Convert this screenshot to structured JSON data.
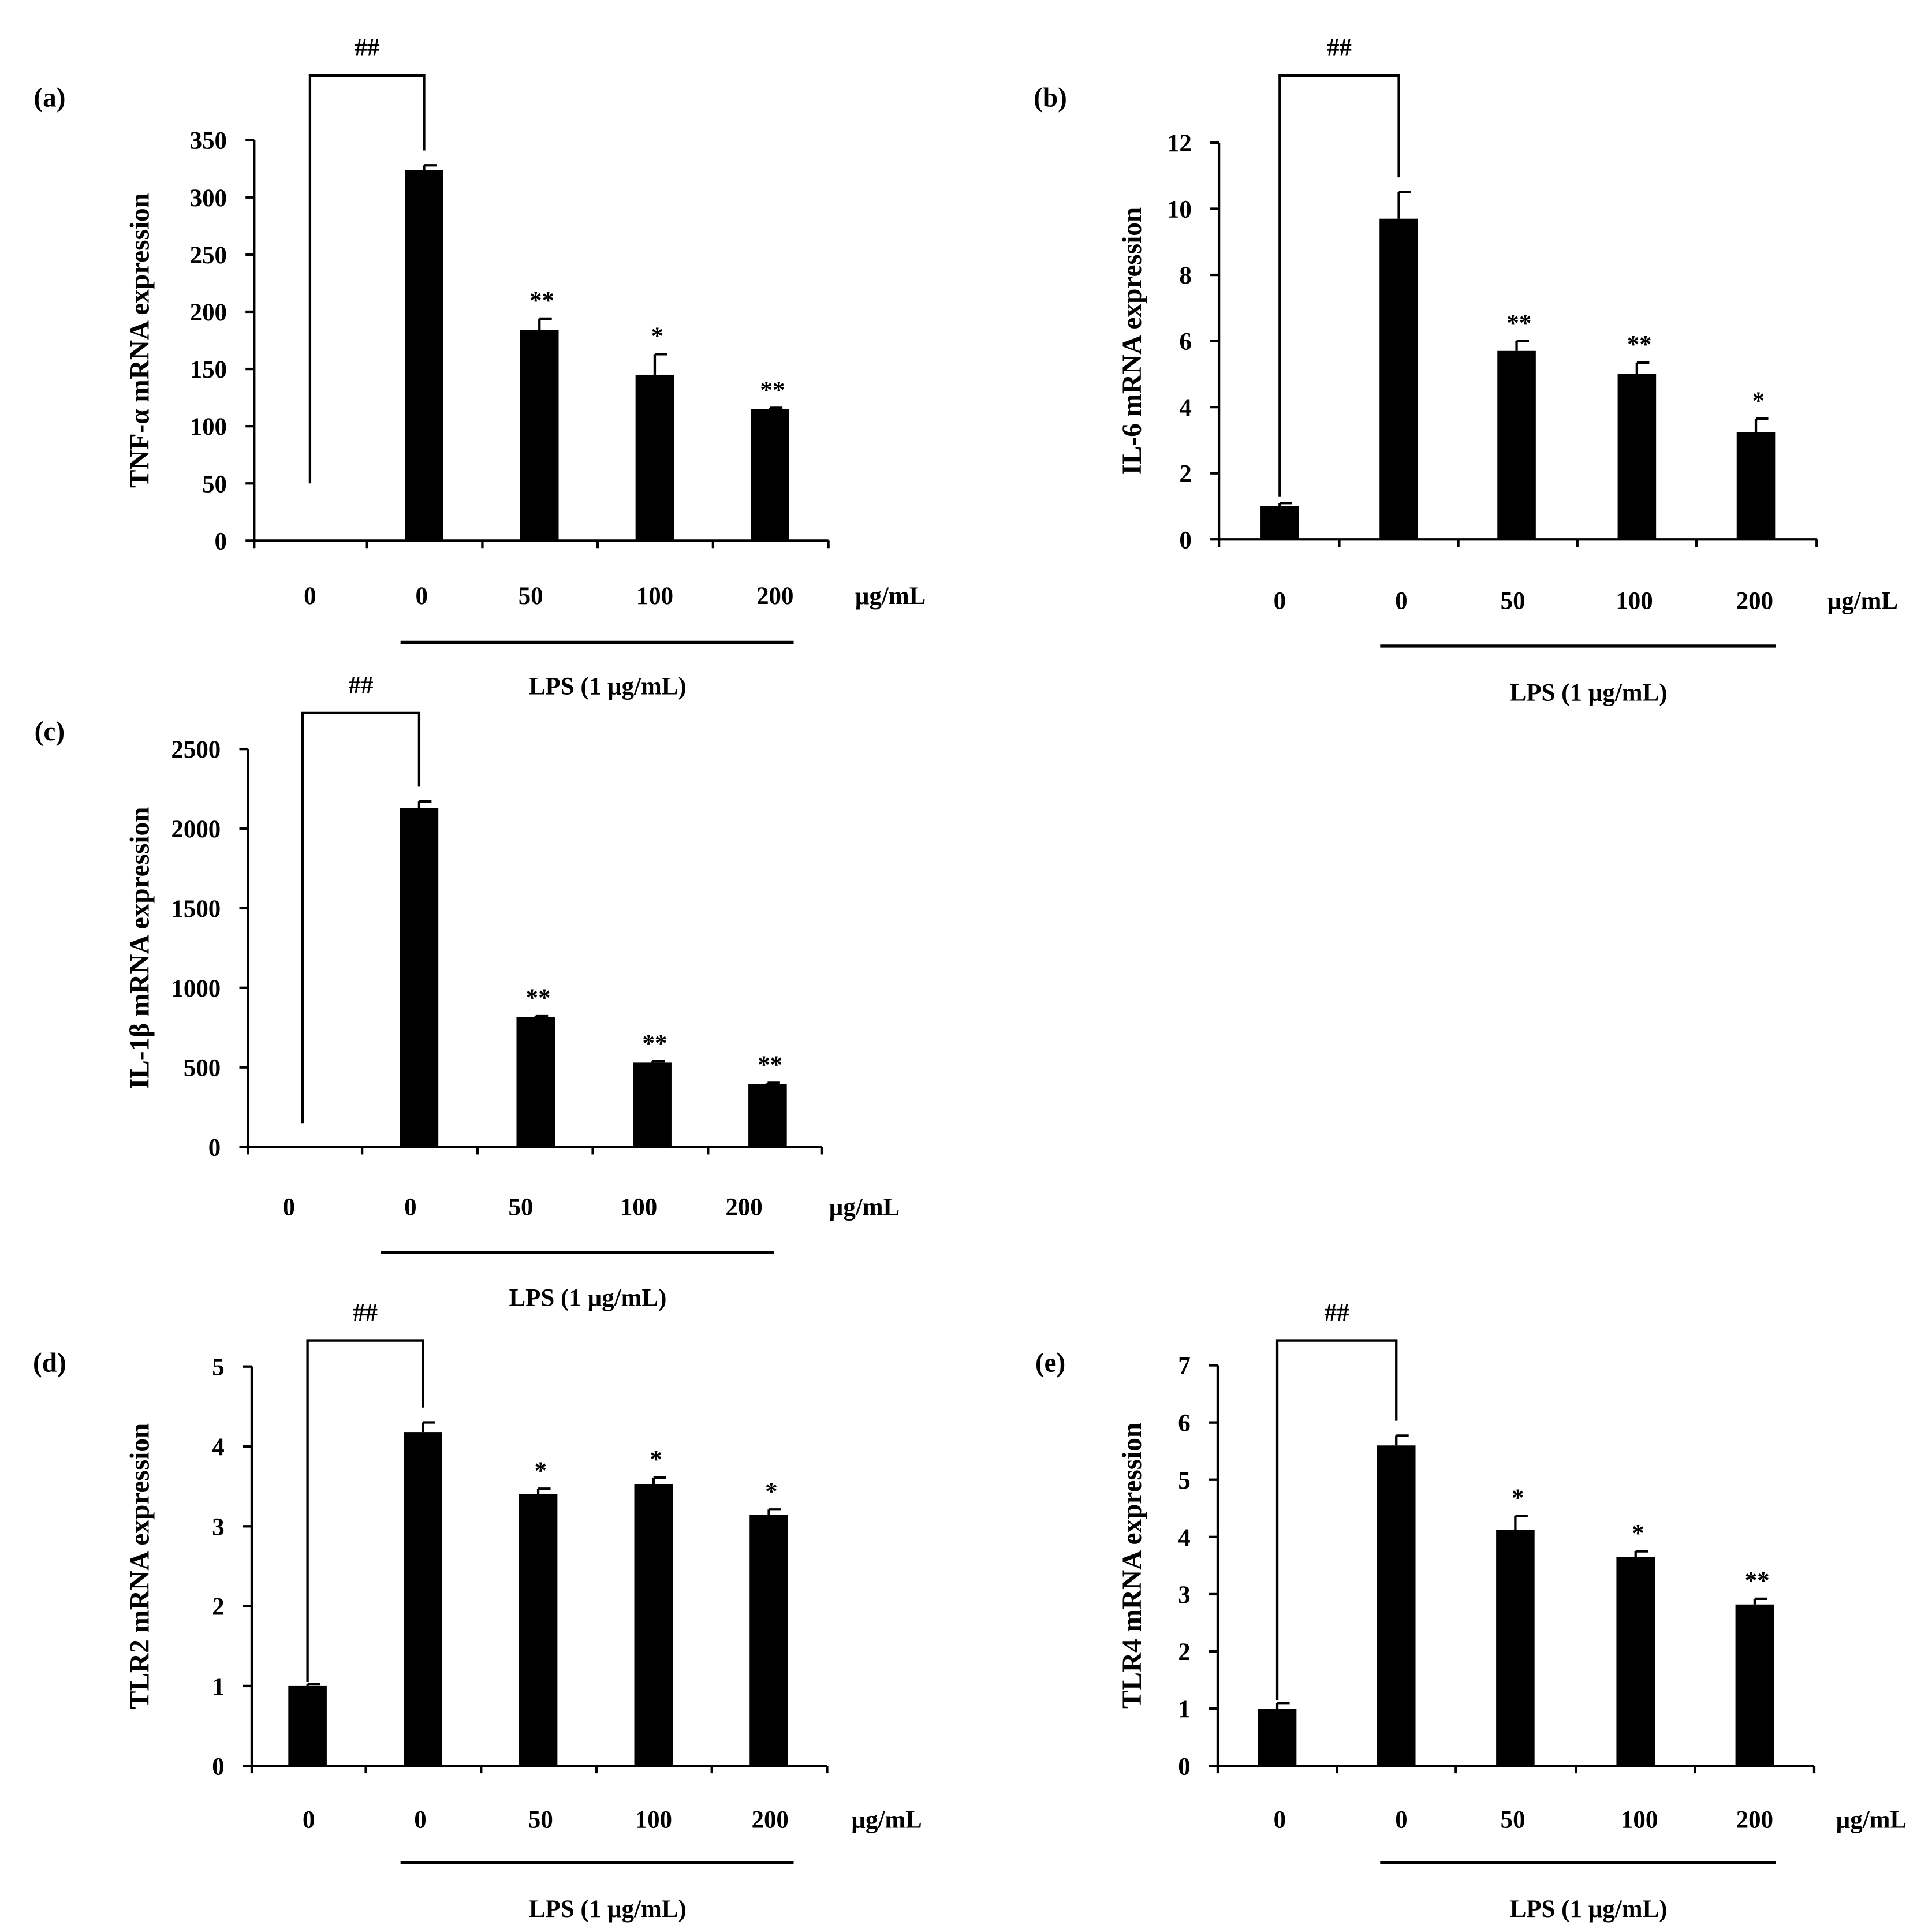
{
  "unit_label": "µg/mL",
  "group_label": "LPS (1 µg/mL)",
  "colors": {
    "bar": "#000000",
    "background": "#ffffff"
  },
  "chart_data": [
    {
      "id": "a",
      "panel_label": "(a)",
      "type": "bar",
      "ylabel": "TNF-α mRNA expression",
      "ylim": [
        0,
        350
      ],
      "ticks": [
        0,
        50,
        100,
        150,
        200,
        250,
        300,
        350
      ],
      "categories": [
        "0",
        "0",
        "50",
        "100",
        "200"
      ],
      "values": [
        0,
        324,
        184,
        145,
        115
      ],
      "errors": [
        0,
        4,
        10,
        18,
        1
      ],
      "annotations": [
        "",
        "",
        "**",
        "*",
        "**"
      ],
      "bracket_label": "##",
      "bracket_left_value": 50
    },
    {
      "id": "b",
      "panel_label": "(b)",
      "type": "bar",
      "ylabel": "IL-6 mRNA expression",
      "ylim": [
        0,
        12
      ],
      "ticks": [
        0,
        2,
        4,
        6,
        8,
        10,
        12
      ],
      "categories": [
        "0",
        "0",
        "50",
        "100",
        "200"
      ],
      "values": [
        1.0,
        9.7,
        5.7,
        5.0,
        3.25
      ],
      "errors": [
        0.1,
        0.8,
        0.3,
        0.35,
        0.4
      ],
      "annotations": [
        "",
        "",
        "**",
        "**",
        "*"
      ],
      "bracket_label": "##",
      "bracket_left_value": 1.3
    },
    {
      "id": "c",
      "panel_label": "(c)",
      "type": "bar",
      "ylabel": "IL-1β mRNA expression",
      "ylim": [
        0,
        2500
      ],
      "ticks": [
        0,
        500,
        1000,
        1500,
        2000,
        2500
      ],
      "categories": [
        "0",
        "0",
        "50",
        "100",
        "200"
      ],
      "values": [
        0,
        2130,
        815,
        530,
        395
      ],
      "errors": [
        0,
        40,
        10,
        8,
        8
      ],
      "annotations": [
        "",
        "",
        "**",
        "**",
        "**"
      ],
      "bracket_label": "##",
      "bracket_left_value": 150
    },
    {
      "id": "d",
      "panel_label": "(d)",
      "type": "bar",
      "ylabel": "TLR2 mRNA expression",
      "ylim": [
        0,
        5
      ],
      "ticks": [
        0,
        1,
        2,
        3,
        4,
        5
      ],
      "categories": [
        "0",
        "0",
        "50",
        "100",
        "200"
      ],
      "values": [
        1.0,
        4.18,
        3.4,
        3.53,
        3.14
      ],
      "errors": [
        0.02,
        0.12,
        0.07,
        0.08,
        0.07
      ],
      "annotations": [
        "",
        "",
        "*",
        "*",
        "*"
      ],
      "bracket_label": "##",
      "bracket_left_value": 1.05
    },
    {
      "id": "e",
      "panel_label": "(e)",
      "type": "bar",
      "ylabel": "TLR4 mRNA expression",
      "ylim": [
        0,
        7
      ],
      "ticks": [
        0,
        1,
        2,
        3,
        4,
        5,
        6,
        7
      ],
      "categories": [
        "0",
        "0",
        "50",
        "100",
        "200"
      ],
      "values": [
        1.0,
        5.6,
        4.12,
        3.65,
        2.82
      ],
      "errors": [
        0.1,
        0.17,
        0.25,
        0.1,
        0.1
      ],
      "annotations": [
        "",
        "",
        "*",
        "*",
        "**"
      ],
      "bracket_label": "##",
      "bracket_left_value": 1.15
    }
  ]
}
